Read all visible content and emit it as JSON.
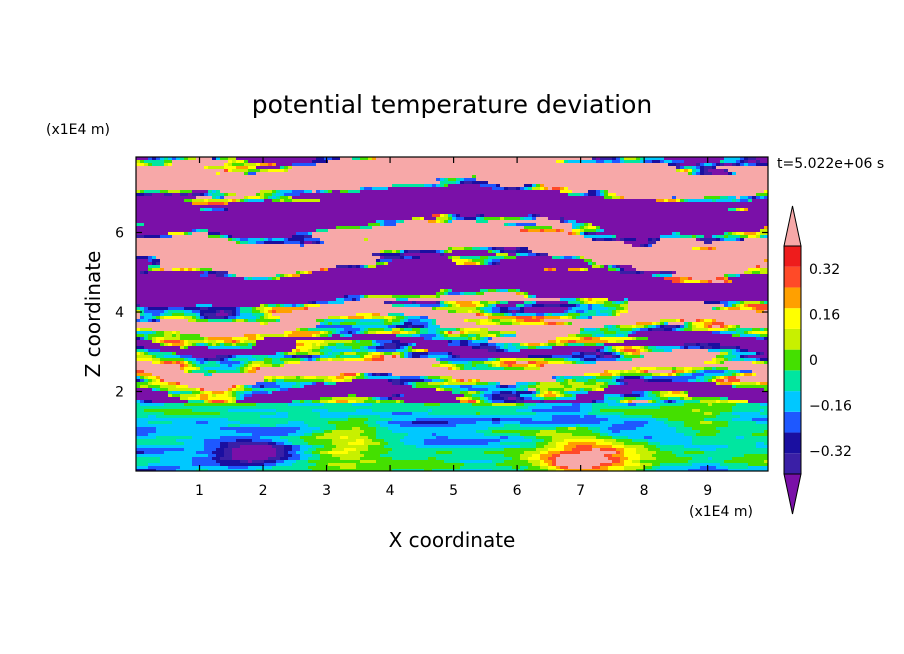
{
  "chart_data": {
    "type": "heatmap",
    "title": "potential temperature deviation",
    "xlabel": "X coordinate",
    "ylabel": "Z coordinate",
    "x_unit": "(x1E4 m)",
    "y_unit": "(x1E4 m)",
    "time_label": "t=5.022e+06 s",
    "x_ticks": [
      "1",
      "2",
      "3",
      "4",
      "5",
      "6",
      "7",
      "8",
      "9"
    ],
    "y_ticks": [
      "2",
      "4",
      "6"
    ],
    "xlim": [
      0,
      9.95
    ],
    "ylim": [
      0,
      7.9
    ],
    "colorbar": {
      "tick_labels": [
        "0.32",
        "0.16",
        "0",
        "-0.16",
        "-0.32"
      ],
      "tick_values": [
        0.32,
        0.16,
        0,
        -0.16,
        -0.32
      ],
      "levels": [
        -0.4,
        -0.32,
        -0.24,
        -0.16,
        -0.08,
        0,
        0.08,
        0.16,
        0.24,
        0.32,
        0.4
      ],
      "colors": [
        "#3a1fa6",
        "#1a0fa0",
        "#1e58ff",
        "#00c8ff",
        "#00e6a0",
        "#44e000",
        "#c8f000",
        "#ffff00",
        "#ffa000",
        "#ff4a28",
        "#ee1c1c"
      ],
      "under_color": "#7a10a8",
      "over_color": "#f7a8a8"
    },
    "field_bands": [
      {
        "z_range": [
          6.2,
          7.9
        ],
        "dominant": "alternating over (pink) and under (purple) layers"
      },
      {
        "z_range": [
          4.2,
          6.2
        ],
        "dominant": "purple/pink layers with turbulent colored filaments"
      },
      {
        "z_range": [
          1.7,
          4.2
        ],
        "dominant": "mixed colors, red-orange and blue patches"
      },
      {
        "z_range": [
          0,
          1.7
        ],
        "dominant": "cyan/green with blue and orange-red eddies"
      }
    ]
  }
}
